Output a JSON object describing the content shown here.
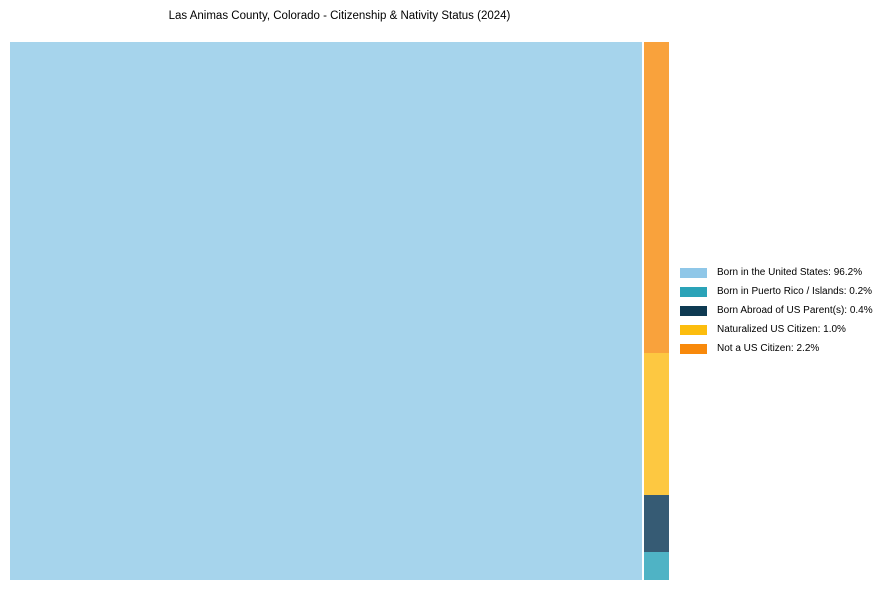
{
  "title": "Las Animas County, Colorado - Citizenship & Nativity Status (2024)",
  "background_color": "#ffffff",
  "chart_data": {
    "type": "treemap",
    "title": "Las Animas County, Colorado - Citizenship & Nativity Status (2024)",
    "unit": "percent",
    "legend_position": "right",
    "grid": false,
    "slices": [
      {
        "id": "born-us",
        "label": "Born in the United States",
        "value": 96.2,
        "legend_text": "Born in the United States: 96.2%",
        "fill": "#A6D4EC",
        "legend_color": "#8FC7E8"
      },
      {
        "id": "puerto-rico",
        "label": "Born in Puerto Rico / Islands",
        "value": 0.2,
        "legend_text": "Born in Puerto Rico / Islands: 0.2%",
        "fill": "#4FB3C5",
        "legend_color": "#2AA3B8"
      },
      {
        "id": "born-abroad",
        "label": "Born Abroad of US Parent(s)",
        "value": 0.4,
        "legend_text": "Born Abroad of US Parent(s): 0.4%",
        "fill": "#365B74",
        "legend_color": "#0E3A52"
      },
      {
        "id": "naturalized",
        "label": "Naturalized US Citizen",
        "value": 1.0,
        "legend_text": "Naturalized US Citizen: 1.0%",
        "fill": "#FDC841",
        "legend_color": "#FCBD0E"
      },
      {
        "id": "not-citizen",
        "label": "Not a US Citizen",
        "value": 2.2,
        "legend_text": "Not a US Citizen: 2.2%",
        "fill": "#F9A23C",
        "legend_color": "#F8890B"
      }
    ],
    "main_slice_id": "born-us",
    "strip_order_top_to_bottom": [
      "not-citizen",
      "naturalized",
      "born-abroad",
      "puerto-rico"
    ]
  }
}
